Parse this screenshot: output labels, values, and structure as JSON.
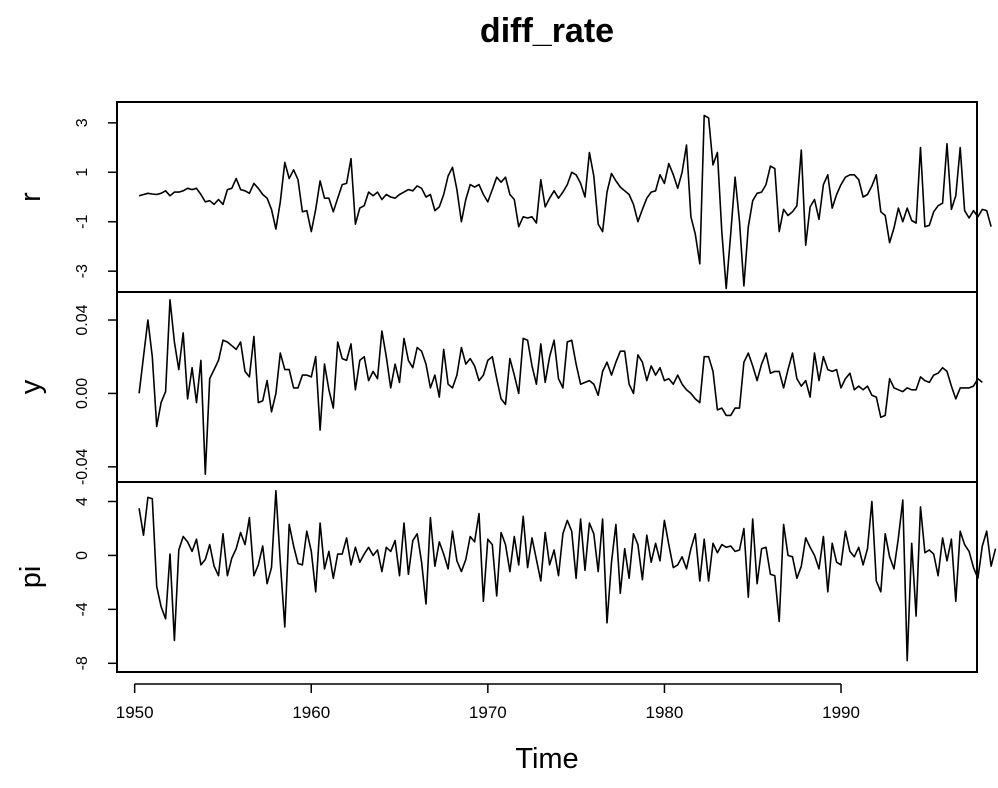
{
  "chart_data": {
    "type": "line",
    "title": "diff_rate",
    "xlabel": "Time",
    "x_start": 1950.25,
    "x_step": 0.25,
    "xlim": [
      1949,
      1997.7
    ],
    "x_ticks": [
      1950,
      1960,
      1970,
      1980,
      1990
    ],
    "x_tick_labels": [
      "1950",
      "1960",
      "1970",
      "1980",
      "1990"
    ],
    "series": [
      {
        "name": "r",
        "ylim": [
          -3.6,
          3.6
        ],
        "y_ticks": [
          -3,
          -1,
          1,
          3
        ],
        "y_tick_labels": [
          "-3",
          "-1",
          "1",
          "3"
        ],
        "values": [
          0.05,
          0.1,
          0.15,
          0.12,
          0.1,
          0.15,
          0.25,
          0.05,
          0.2,
          0.2,
          0.25,
          0.35,
          0.3,
          0.35,
          0.1,
          -0.2,
          -0.15,
          -0.3,
          -0.1,
          -0.3,
          0.3,
          0.35,
          0.75,
          0.3,
          0.25,
          0.15,
          0.55,
          0.35,
          0.1,
          -0.05,
          -0.5,
          -1.3,
          -0.2,
          1.4,
          0.75,
          1.1,
          0.7,
          -0.6,
          -0.55,
          -1.4,
          -0.5,
          0.65,
          -0.05,
          -0.05,
          -0.6,
          -0.05,
          0.5,
          0.55,
          1.55,
          -1.1,
          -0.45,
          -0.35,
          0.2,
          0.05,
          0.2,
          -0.1,
          0.1,
          0.0,
          -0.05,
          0.1,
          0.2,
          0.3,
          0.25,
          0.45,
          0.35,
          0.0,
          0.1,
          -0.55,
          -0.4,
          0.1,
          0.85,
          1.2,
          0.3,
          -1.0,
          -0.1,
          0.5,
          0.4,
          0.5,
          0.1,
          -0.2,
          0.3,
          0.8,
          0.6,
          0.8,
          0.1,
          -0.1,
          -1.2,
          -0.8,
          -0.85,
          -0.8,
          -1.05,
          0.7,
          -0.4,
          -0.05,
          0.25,
          -0.05,
          0.2,
          0.5,
          1.0,
          0.9,
          0.55,
          0.0,
          1.8,
          0.85,
          -1.1,
          -1.4,
          0.2,
          0.95,
          0.65,
          0.4,
          0.25,
          0.1,
          -0.3,
          -1.0,
          -0.5,
          -0.05,
          0.2,
          0.25,
          0.9,
          0.55,
          1.35,
          0.9,
          0.35,
          1.0,
          2.1,
          -0.8,
          -1.5,
          -2.7,
          3.3,
          3.2,
          1.3,
          1.8,
          -1.4,
          -3.7,
          -1.5,
          0.8,
          -1.0,
          -3.6,
          -1.2,
          -0.15,
          0.15,
          0.2,
          0.5,
          1.25,
          1.15,
          -1.4,
          -0.5,
          -0.75,
          -0.6,
          -0.35,
          1.9,
          -1.95,
          -0.4,
          -0.1,
          -0.9,
          0.5,
          0.9,
          -0.45,
          0.1,
          0.5,
          0.8,
          0.9,
          0.9,
          0.7,
          0.0,
          0.1,
          0.45,
          0.9,
          -0.6,
          -0.75,
          -1.85,
          -1.25,
          -0.45,
          -1.0,
          -0.45,
          -0.95,
          -1.05,
          2.0,
          -1.2,
          -1.15,
          -0.6,
          -0.35,
          -0.25,
          2.15,
          -0.5,
          0.05,
          2.0,
          -0.55,
          -0.85,
          -0.55,
          -0.8,
          -0.5,
          -0.55,
          -1.2
        ]
      },
      {
        "name": "y",
        "ylim": [
          -0.045,
          0.052
        ],
        "y_ticks": [
          -0.04,
          0.0,
          0.04
        ],
        "y_tick_labels": [
          "-0.04",
          "0.00",
          "0.04"
        ],
        "values": [
          0.0,
          0.02,
          0.04,
          0.02,
          -0.018,
          -0.005,
          0.001,
          0.051,
          0.028,
          0.013,
          0.033,
          -0.003,
          0.014,
          -0.005,
          0.018,
          -0.044,
          0.008,
          0.013,
          0.018,
          0.029,
          0.028,
          0.026,
          0.024,
          0.028,
          0.012,
          0.009,
          0.031,
          -0.005,
          -0.004,
          0.007,
          -0.01,
          0.0,
          0.022,
          0.013,
          0.013,
          0.003,
          0.003,
          0.01,
          0.01,
          0.009,
          0.02,
          -0.02,
          0.016,
          0.002,
          -0.008,
          0.028,
          0.019,
          0.018,
          0.027,
          0.002,
          0.018,
          0.02,
          0.007,
          0.012,
          0.008,
          0.034,
          0.02,
          0.003,
          0.016,
          0.006,
          0.03,
          0.018,
          0.014,
          0.025,
          0.023,
          0.016,
          0.003,
          0.01,
          -0.002,
          0.024,
          0.005,
          0.003,
          0.01,
          0.025,
          0.016,
          0.019,
          0.015,
          0.007,
          0.01,
          0.018,
          0.02,
          0.008,
          -0.003,
          -0.006,
          0.019,
          0.01,
          0.0,
          0.03,
          0.029,
          0.015,
          0.005,
          0.027,
          0.006,
          0.02,
          0.029,
          0.008,
          0.003,
          0.028,
          0.029,
          0.016,
          0.005,
          0.006,
          0.007,
          0.005,
          -0.001,
          0.012,
          0.017,
          0.01,
          0.017,
          0.023,
          0.023,
          0.005,
          0.0,
          0.021,
          0.017,
          0.007,
          0.015,
          0.01,
          0.014,
          0.007,
          0.008,
          0.005,
          0.01,
          0.005,
          0.002,
          0.0,
          -0.003,
          -0.005,
          0.02,
          0.02,
          0.012,
          -0.009,
          -0.008,
          -0.012,
          -0.012,
          -0.008,
          -0.008,
          0.017,
          0.022,
          0.015,
          0.007,
          0.016,
          0.022,
          0.011,
          0.012,
          0.012,
          0.003,
          0.013,
          0.022,
          0.008,
          0.004,
          0.007,
          -0.002,
          0.022,
          0.007,
          0.02,
          0.013,
          0.012,
          0.013,
          0.003,
          0.008,
          0.011,
          0.002,
          0.004,
          0.002,
          0.004,
          -0.001,
          -0.002,
          -0.013,
          -0.012,
          0.008,
          0.003,
          0.002,
          0.001,
          0.003,
          0.002,
          0.002,
          0.009,
          0.007,
          0.006,
          0.01,
          0.011,
          0.014,
          0.012,
          0.004,
          -0.003,
          0.003,
          0.003,
          0.003,
          0.004,
          0.008,
          0.006
        ]
      },
      {
        "name": "pi",
        "ylim": [
          -8.2,
          5.0
        ],
        "y_ticks": [
          -8,
          -4,
          0,
          4
        ],
        "y_tick_labels": [
          "-8",
          "-4",
          "0",
          "4"
        ],
        "values": [
          3.5,
          1.5,
          4.3,
          4.2,
          -2.3,
          -3.8,
          -4.7,
          0.1,
          -6.3,
          0.4,
          1.4,
          1.0,
          0.3,
          1.2,
          -0.7,
          -0.3,
          0.8,
          -0.8,
          -1.5,
          1.6,
          -1.5,
          -0.2,
          0.5,
          1.7,
          0.8,
          2.8,
          -1.5,
          -0.7,
          0.7,
          -2.1,
          -0.9,
          4.8,
          -0.5,
          -5.3,
          2.3,
          0.7,
          -0.6,
          -0.7,
          1.8,
          0.3,
          -2.7,
          2.4,
          -1.0,
          0.3,
          -1.7,
          0.1,
          0.1,
          1.3,
          -0.7,
          0.6,
          -0.5,
          0.1,
          0.6,
          0.0,
          0.4,
          -1.2,
          0.6,
          0.3,
          1.1,
          -1.5,
          2.4,
          -1.4,
          1.1,
          1.6,
          -0.5,
          -3.6,
          2.8,
          -0.8,
          1.0,
          0.1,
          -1.0,
          1.8,
          -0.4,
          -1.2,
          -0.3,
          1.4,
          1.0,
          3.1,
          -3.4,
          1.2,
          0.8,
          -3.0,
          1.7,
          0.8,
          -1.2,
          1.4,
          -0.7,
          2.9,
          -0.9,
          1.3,
          -0.3,
          -1.9,
          1.7,
          -0.7,
          0.4,
          -1.5,
          1.6,
          2.6,
          1.8,
          -1.7,
          2.7,
          -1.1,
          2.4,
          1.6,
          -1.2,
          2.7,
          -5.0,
          -0.5,
          2.3,
          -2.8,
          0.5,
          -1.7,
          1.6,
          0.8,
          -1.8,
          1.5,
          -0.5,
          0.9,
          -0.4,
          2.6,
          0.8,
          -0.9,
          -0.7,
          -0.1,
          -1.0,
          0.5,
          1.6,
          -1.9,
          1.2,
          -1.9,
          0.9,
          0.2,
          0.8,
          0.6,
          0.7,
          0.3,
          0.4,
          2.0,
          -3.1,
          2.7,
          -2.1,
          0.5,
          0.6,
          -1.4,
          -1.5,
          -4.9,
          2.3,
          0.0,
          -0.1,
          -1.7,
          -0.8,
          1.3,
          0.6,
          0.0,
          -1.0,
          1.4,
          -2.7,
          0.9,
          -0.5,
          -0.7,
          1.8,
          0.3,
          -0.1,
          0.6,
          -0.7,
          0.5,
          4.0,
          -1.9,
          -2.7,
          1.6,
          -0.1,
          -1.0,
          1.3,
          4.1,
          -7.8,
          0.9,
          -4.5,
          3.6,
          0.2,
          0.4,
          0.1,
          -1.5,
          1.3,
          -0.4,
          1.2,
          -3.4,
          1.8,
          0.8,
          0.3,
          -0.9,
          -1.7,
          0.7,
          1.8,
          -0.8,
          0.5
        ]
      }
    ]
  }
}
